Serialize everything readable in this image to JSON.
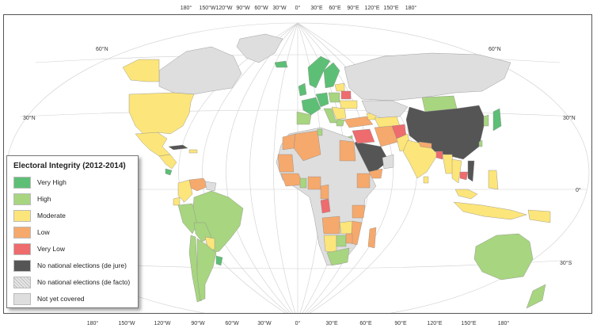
{
  "map": {
    "top_lon_labels": [
      "180°",
      "150°W",
      "120°W",
      "90°W",
      "60°W",
      "30°W",
      "0°",
      "30°E",
      "60°E",
      "90°E",
      "120°E",
      "150°E",
      "180°"
    ],
    "bottom_lon_labels": [
      "180°",
      "150°W",
      "120°W",
      "90°W",
      "60°W",
      "30°W",
      "0°",
      "30°E",
      "60°E",
      "90°E",
      "120°E",
      "150°E",
      "180°"
    ],
    "left_lat_labels": [
      "60°N",
      "30°N",
      "0°"
    ],
    "right_lat_labels": [
      "60°N",
      "30°N",
      "0°",
      "30°S"
    ],
    "colors": {
      "very_high": "#5dbf75",
      "high": "#a8d580",
      "moderate": "#fce57a",
      "low": "#f6a96c",
      "very_low": "#ee6b6e",
      "no_elections_de_jure": "#555555",
      "not_yet_covered": "#dedede",
      "ocean": "#ffffff",
      "graticule": "#cfcfcf"
    }
  },
  "legend": {
    "title": "Electoral Integrity (2012-2014)",
    "items": [
      {
        "label": "Very High",
        "color": "#5dbf75"
      },
      {
        "label": "High",
        "color": "#a8d580"
      },
      {
        "label": "Moderate",
        "color": "#fce57a"
      },
      {
        "label": "Low",
        "color": "#f6a96c"
      },
      {
        "label": "Very Low",
        "color": "#ee6b6e"
      },
      {
        "label": "No national elections (de jure)",
        "color": "#555555"
      },
      {
        "label": "No national elections (de facto)",
        "color": "hatched"
      },
      {
        "label": "Not yet covered",
        "color": "#dedede"
      }
    ]
  }
}
